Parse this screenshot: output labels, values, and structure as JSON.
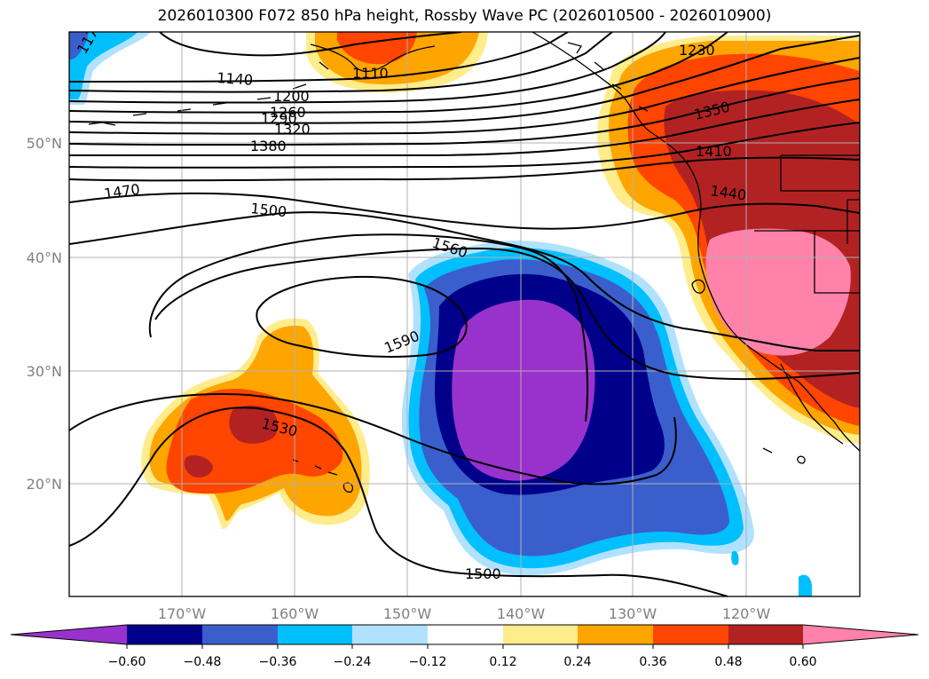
{
  "title": "2026010300 F072 850 hPa height, Rossby Wave PC (2026010500 - 2026010900)",
  "map": {
    "lat_labels": [
      "50°N",
      "40°N",
      "30°N",
      "20°N"
    ],
    "lon_labels": [
      "170°W",
      "160°W",
      "150°W",
      "140°W",
      "130°W",
      "120°W"
    ],
    "contour_labels": [
      "1230",
      "1140",
      "1110",
      "1200",
      "1260",
      "1290",
      "1320",
      "1350",
      "1380",
      "1410",
      "1440",
      "1470",
      "1500",
      "1560",
      "1590",
      "1530",
      "1500",
      "117"
    ]
  },
  "colorbar": {
    "ticks": [
      "−0.60",
      "−0.48",
      "−0.36",
      "−0.24",
      "−0.12",
      "0.12",
      "0.24",
      "0.36",
      "0.48",
      "0.60"
    ],
    "colors": [
      "#9932cc",
      "#00008b",
      "#3a5fcd",
      "#00bfff",
      "#b0e2ff",
      "#ffffff",
      "#ffec8b",
      "#ffa500",
      "#ff4500",
      "#b22222",
      "#ff82ab"
    ]
  },
  "colors": {
    "purple": "#9932cc",
    "navy": "#00008b",
    "blue": "#3a5fcd",
    "cyan": "#00bfff",
    "lightblue": "#b0e2ff",
    "yellow": "#ffec8b",
    "orange": "#ffa500",
    "redorange": "#ff4500",
    "firebrick": "#b22222",
    "pink": "#ff82ab"
  }
}
